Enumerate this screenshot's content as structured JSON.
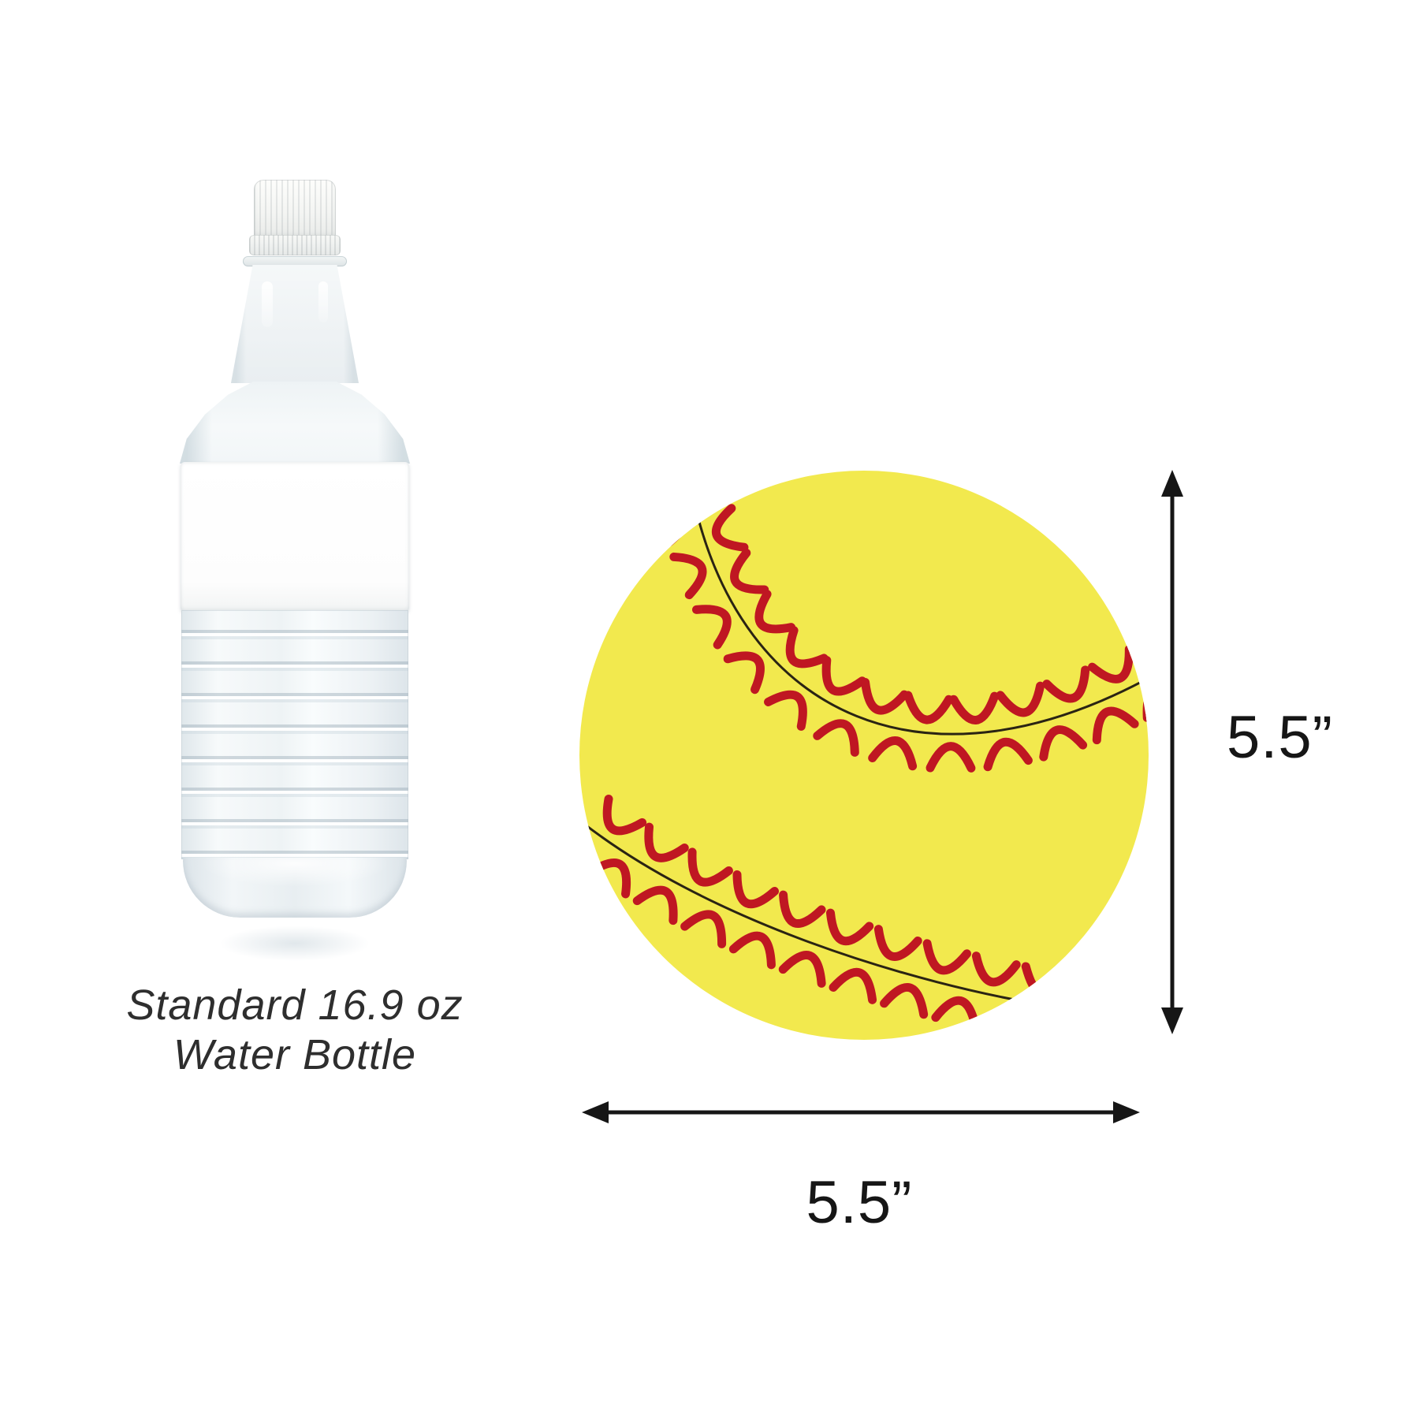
{
  "comparison": {
    "bottle": {
      "caption_line1": "Standard 16.9 oz",
      "caption_line2": "Water Bottle"
    },
    "ball": {
      "height_label": "5.5”",
      "width_label": "5.5”"
    }
  },
  "colors": {
    "background": "#ffffff",
    "ball_yellow": "#f2e94e",
    "stitch_red": "#bf1722",
    "seam_black": "#2a2413",
    "stitch_dot_dark": "#22150a",
    "dimension_black": "#161616",
    "caption_text": "#2e2e2e"
  }
}
